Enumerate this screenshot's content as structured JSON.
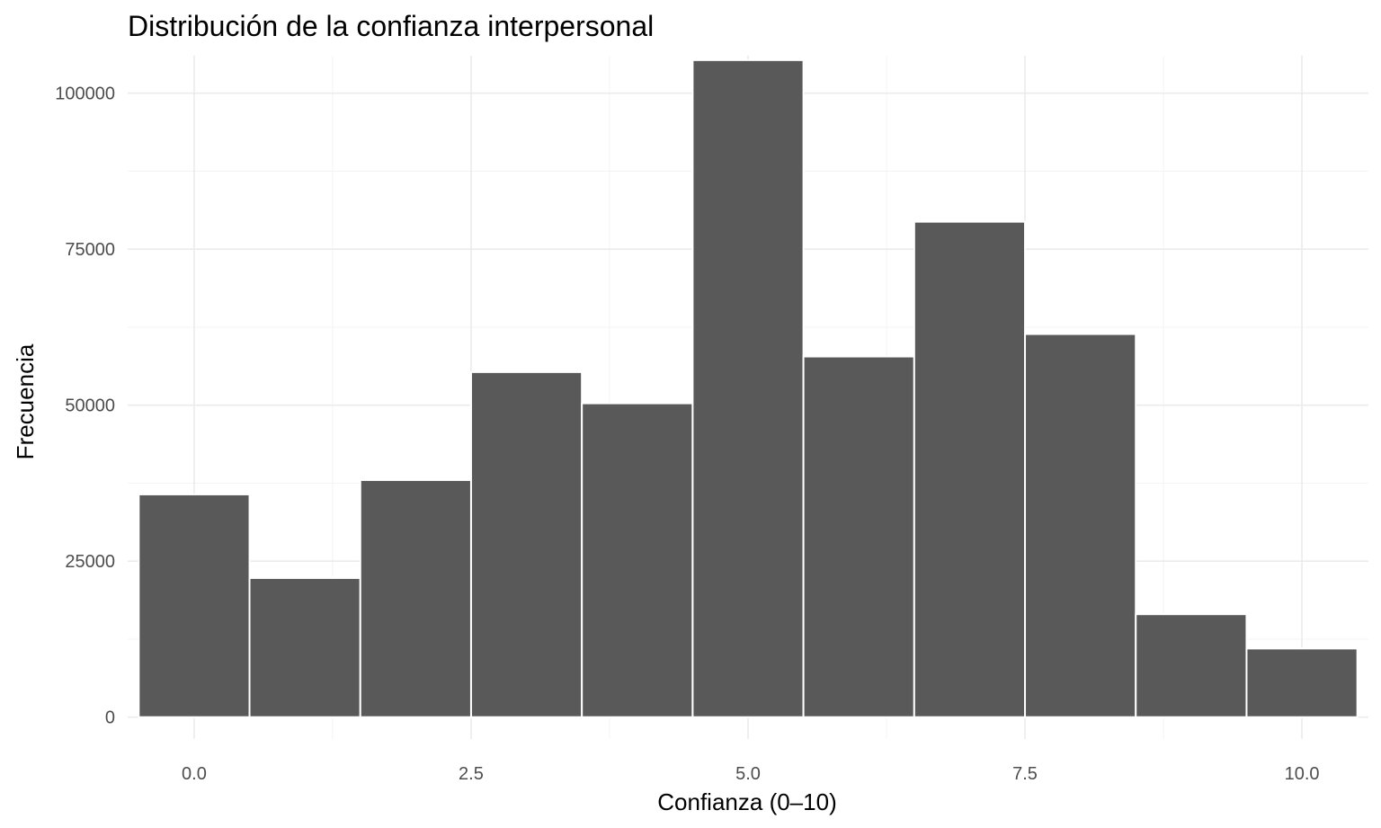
{
  "chart_data": {
    "type": "bar",
    "title": "Distribución de la confianza interpersonal",
    "xlabel": "Confianza (0–10)",
    "ylabel": "Frecuencia",
    "categories": [
      "0",
      "1",
      "2",
      "3",
      "4",
      "5",
      "6",
      "7",
      "8",
      "9",
      "10"
    ],
    "x": [
      0,
      1,
      2,
      3,
      4,
      5,
      6,
      7,
      8,
      9,
      10
    ],
    "values": [
      35700,
      22300,
      38000,
      55300,
      50300,
      105300,
      57800,
      79400,
      61400,
      16500,
      11000
    ],
    "bin_width": 1,
    "xlim": [
      -0.6,
      10.6
    ],
    "ylim": [
      -3500,
      106000
    ],
    "x_ticks": [
      0,
      2.5,
      5,
      7.5,
      10
    ],
    "x_tick_labels": [
      "0.0",
      "2.5",
      "5.0",
      "7.5",
      "10.0"
    ],
    "y_ticks": [
      0,
      25000,
      50000,
      75000,
      100000
    ],
    "y_tick_labels": [
      "0",
      "25000",
      "50000",
      "75000",
      "100000"
    ],
    "grid": true,
    "legend": "none",
    "colors": {
      "bar_fill": "#595959",
      "bar_stroke": "#ffffff",
      "grid_major": "#ebebeb",
      "grid_minor": "#f5f5f5",
      "tick_text": "#4d4d4d",
      "background": "#ffffff"
    }
  }
}
